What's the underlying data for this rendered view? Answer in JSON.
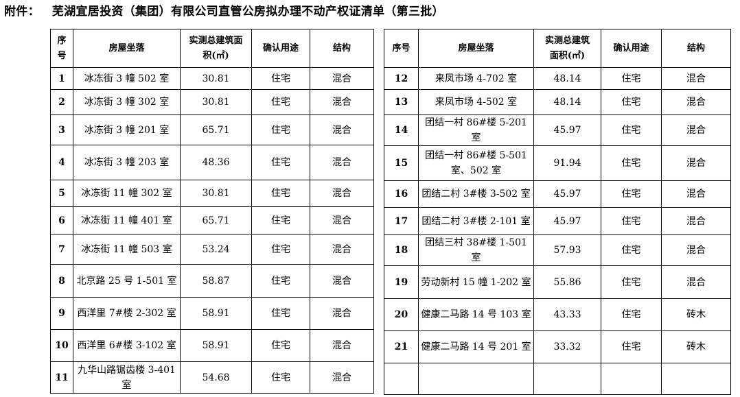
{
  "title": {
    "prefix": "附件：",
    "text": "芜湖宜居投资（集团）有限公司直管公房拟办理不动产权证清单（第三批）"
  },
  "headers": {
    "no_left": "序号",
    "address": "房屋坐落",
    "area": "实测总建筑面积(㎡)",
    "use": "确认用途",
    "structure": "结构",
    "no_right": "序号"
  },
  "left_rows": [
    {
      "no": "1",
      "address": "冰冻街 3 幢 502 室",
      "area": "30.81",
      "use": "住宅",
      "structure": "混合"
    },
    {
      "no": "2",
      "address": "冰冻街 3 幢 302 室",
      "area": "30.81",
      "use": "住宅",
      "structure": "混合"
    },
    {
      "no": "3",
      "address": "冰冻街 3 幢 201 室",
      "area": "65.71",
      "use": "住宅",
      "structure": "混合"
    },
    {
      "no": "4",
      "address": "冰冻街 3 幢 203 室",
      "area": "48.36",
      "use": "住宅",
      "structure": "混合"
    },
    {
      "no": "5",
      "address": "冰冻街 11 幢 302 室",
      "area": "30.81",
      "use": "住宅",
      "structure": "混合"
    },
    {
      "no": "6",
      "address": "冰冻街 11 幢 401 室",
      "area": "65.71",
      "use": "住宅",
      "structure": "混合"
    },
    {
      "no": "7",
      "address": "冰冻街 11 幢 503 室",
      "area": "53.24",
      "use": "住宅",
      "structure": "混合"
    },
    {
      "no": "8",
      "address": "北京路 25 号 1-501 室",
      "area": "58.87",
      "use": "住宅",
      "structure": "混合"
    },
    {
      "no": "9",
      "address": "西洋里 7#楼 2-302 室",
      "area": "58.91",
      "use": "住宅",
      "structure": "混合"
    },
    {
      "no": "10",
      "address": "西洋里 6#楼 3-102 室",
      "area": "58.91",
      "use": "住宅",
      "structure": "混合"
    },
    {
      "no": "11",
      "address": "九华山路锯齿楼 3-401 室",
      "area": "54.68",
      "use": "住宅",
      "structure": "混合"
    }
  ],
  "right_rows": [
    {
      "no": "12",
      "address": "来凤市场 4-702 室",
      "area": "48.14",
      "use": "住宅",
      "structure": "混合"
    },
    {
      "no": "13",
      "address": "来凤市场 4-502 室",
      "area": "48.14",
      "use": "住宅",
      "structure": "混合"
    },
    {
      "no": "14",
      "address": "团结一村 86#楼 5-201 室",
      "area": "45.97",
      "use": "住宅",
      "structure": "混合"
    },
    {
      "no": "15",
      "address": "团结一村 86#楼 5-501 室、502 室",
      "area": "91.94",
      "use": "住宅",
      "structure": "混合"
    },
    {
      "no": "16",
      "address": "团结二村 3#楼 3-502 室",
      "area": "45.97",
      "use": "住宅",
      "structure": "混合"
    },
    {
      "no": "17",
      "address": "团结二村 3#楼 2-101 室",
      "area": "45.97",
      "use": "住宅",
      "structure": "混合"
    },
    {
      "no": "18",
      "address": "团结三村 38#楼 1-501 室",
      "area": "57.93",
      "use": "住宅",
      "structure": "混合"
    },
    {
      "no": "19",
      "address": "劳动新村 15 幢 1-202 室",
      "area": "55.86",
      "use": "住宅",
      "structure": "混合"
    },
    {
      "no": "20",
      "address": "健康二马路 14 号 103 室",
      "area": "43.33",
      "use": "住宅",
      "structure": "砖木"
    },
    {
      "no": "21",
      "address": "健康二马路 14 号 201 室",
      "area": "33.32",
      "use": "住宅",
      "structure": "砖木"
    }
  ]
}
